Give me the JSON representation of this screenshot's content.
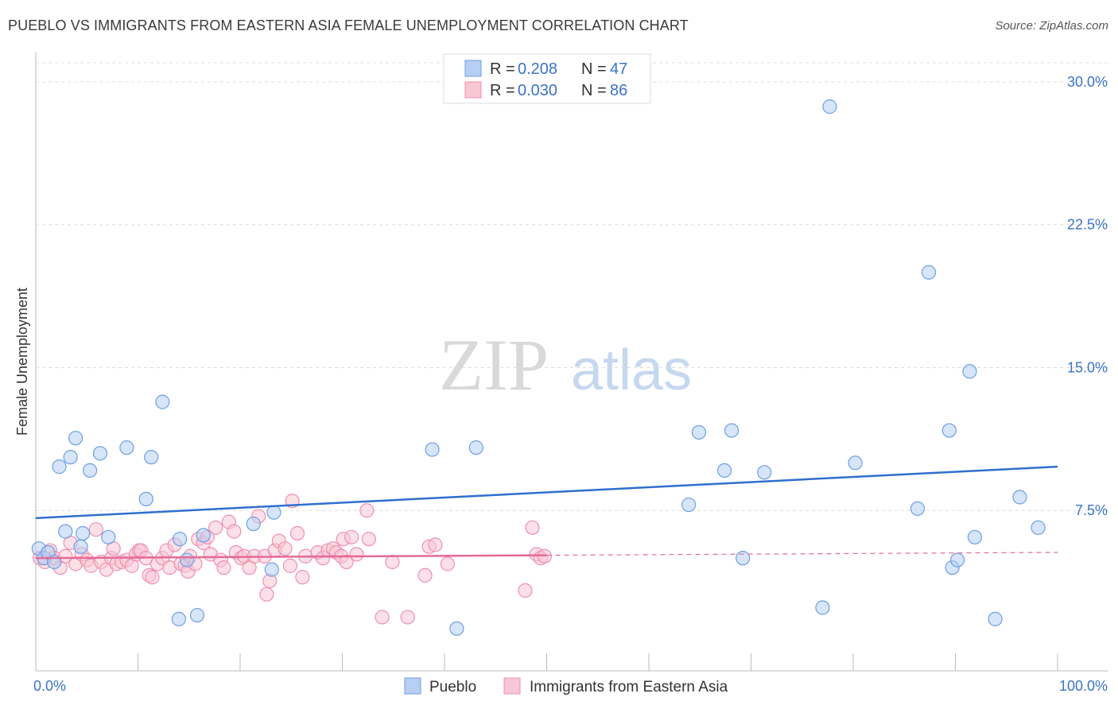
{
  "title": "PUEBLO VS IMMIGRANTS FROM EASTERN ASIA FEMALE UNEMPLOYMENT CORRELATION CHART",
  "source": "Source: ZipAtlas.com",
  "watermark": {
    "zip": "ZIP",
    "atlas": "atlas"
  },
  "legend": {
    "rows": [
      {
        "r_label": "R = ",
        "r_value": "0.208",
        "n_label": "N = ",
        "n_value": "47"
      },
      {
        "r_label": "R = ",
        "r_value": "0.030",
        "n_label": "N = ",
        "n_value": "86"
      }
    ]
  },
  "chart_data": {
    "type": "scatter",
    "ylabel": "Female Unemployment",
    "xlim": [
      0,
      100
    ],
    "ylim": [
      0,
      31
    ],
    "x_tick_labels": [
      {
        "value": 0,
        "label": "0.0%"
      },
      {
        "value": 100,
        "label": "100.0%"
      }
    ],
    "y_ticks": [
      {
        "value": 7.5,
        "label": "7.5%"
      },
      {
        "value": 15.0,
        "label": "15.0%"
      },
      {
        "value": 22.5,
        "label": "22.5%"
      },
      {
        "value": 30.0,
        "label": "30.0%"
      }
    ],
    "grid": true,
    "legend_position": "top-center",
    "series": [
      {
        "name": "Pueblo",
        "color": "#6d9ee6",
        "fill": "#b7cff3",
        "trend": {
          "x": [
            0,
            100
          ],
          "y": [
            7.1,
            9.8
          ],
          "color": "#2f6fcd",
          "dashed_from": null
        },
        "points": [
          [
            0.3,
            5.5
          ],
          [
            0.8,
            5.0
          ],
          [
            1.2,
            5.3
          ],
          [
            1.8,
            4.8
          ],
          [
            2.3,
            9.8
          ],
          [
            2.9,
            6.4
          ],
          [
            3.4,
            10.3
          ],
          [
            3.9,
            11.3
          ],
          [
            4.4,
            5.6
          ],
          [
            4.6,
            6.3
          ],
          [
            5.3,
            9.6
          ],
          [
            6.3,
            10.5
          ],
          [
            7.1,
            6.1
          ],
          [
            8.9,
            10.8
          ],
          [
            10.8,
            8.1
          ],
          [
            11.3,
            10.3
          ],
          [
            12.4,
            13.2
          ],
          [
            14.0,
            1.8
          ],
          [
            14.1,
            6.0
          ],
          [
            14.8,
            4.9
          ],
          [
            15.8,
            2.0
          ],
          [
            16.4,
            6.2
          ],
          [
            21.3,
            6.8
          ],
          [
            23.1,
            4.4
          ],
          [
            23.3,
            7.4
          ],
          [
            38.8,
            10.7
          ],
          [
            41.2,
            1.3
          ],
          [
            43.1,
            10.8
          ],
          [
            63.9,
            7.8
          ],
          [
            64.9,
            11.6
          ],
          [
            67.4,
            9.6
          ],
          [
            68.1,
            11.7
          ],
          [
            69.2,
            5.0
          ],
          [
            71.3,
            9.5
          ],
          [
            77.0,
            2.4
          ],
          [
            77.7,
            28.7
          ],
          [
            80.2,
            10.0
          ],
          [
            86.3,
            7.6
          ],
          [
            87.4,
            20.0
          ],
          [
            89.4,
            11.7
          ],
          [
            89.7,
            4.5
          ],
          [
            90.2,
            4.9
          ],
          [
            91.4,
            14.8
          ],
          [
            91.9,
            6.1
          ],
          [
            93.9,
            1.8
          ],
          [
            96.3,
            8.2
          ],
          [
            98.1,
            6.6
          ]
        ]
      },
      {
        "name": "Immigrants from Eastern Asia",
        "color": "#ee90ad",
        "fill": "#f8c6d5",
        "trend": {
          "x": [
            0,
            100
          ],
          "y": [
            5.0,
            5.3
          ],
          "color": "#e46a94",
          "dashed_from": 50
        },
        "points": [
          [
            0.4,
            5.0
          ],
          [
            0.9,
            4.8
          ],
          [
            1.4,
            5.4
          ],
          [
            1.8,
            5.0
          ],
          [
            2.4,
            4.5
          ],
          [
            2.9,
            5.1
          ],
          [
            3.4,
            5.8
          ],
          [
            3.9,
            4.7
          ],
          [
            4.5,
            5.2
          ],
          [
            5.0,
            4.9
          ],
          [
            5.4,
            4.6
          ],
          [
            5.9,
            6.5
          ],
          [
            6.4,
            4.8
          ],
          [
            6.9,
            4.4
          ],
          [
            7.4,
            5.0
          ],
          [
            7.6,
            5.5
          ],
          [
            7.9,
            4.7
          ],
          [
            8.4,
            4.8
          ],
          [
            8.9,
            4.9
          ],
          [
            9.4,
            4.6
          ],
          [
            9.8,
            5.2
          ],
          [
            10.1,
            5.4
          ],
          [
            10.3,
            5.4
          ],
          [
            10.8,
            5.0
          ],
          [
            11.1,
            4.1
          ],
          [
            11.4,
            4.0
          ],
          [
            11.9,
            4.7
          ],
          [
            12.4,
            5.0
          ],
          [
            12.8,
            5.4
          ],
          [
            13.1,
            4.5
          ],
          [
            13.6,
            5.7
          ],
          [
            14.2,
            4.7
          ],
          [
            14.6,
            4.6
          ],
          [
            14.9,
            4.3
          ],
          [
            15.1,
            5.1
          ],
          [
            15.6,
            4.7
          ],
          [
            15.9,
            6.0
          ],
          [
            16.4,
            5.8
          ],
          [
            16.8,
            6.1
          ],
          [
            17.1,
            5.2
          ],
          [
            17.6,
            6.6
          ],
          [
            18.1,
            4.9
          ],
          [
            18.4,
            4.5
          ],
          [
            18.9,
            6.9
          ],
          [
            19.4,
            6.4
          ],
          [
            19.6,
            5.3
          ],
          [
            20.1,
            5.0
          ],
          [
            20.4,
            5.1
          ],
          [
            20.9,
            4.5
          ],
          [
            21.4,
            5.1
          ],
          [
            21.8,
            7.2
          ],
          [
            22.4,
            5.1
          ],
          [
            22.6,
            3.1
          ],
          [
            22.9,
            3.8
          ],
          [
            23.4,
            5.4
          ],
          [
            23.8,
            5.9
          ],
          [
            24.4,
            5.5
          ],
          [
            24.9,
            4.6
          ],
          [
            25.1,
            8.0
          ],
          [
            25.6,
            6.3
          ],
          [
            26.1,
            4.0
          ],
          [
            26.4,
            5.1
          ],
          [
            27.6,
            5.3
          ],
          [
            28.1,
            5.0
          ],
          [
            28.6,
            5.4
          ],
          [
            29.1,
            5.5
          ],
          [
            29.4,
            5.3
          ],
          [
            29.9,
            5.1
          ],
          [
            30.1,
            6.0
          ],
          [
            30.4,
            4.8
          ],
          [
            30.9,
            6.1
          ],
          [
            31.4,
            5.2
          ],
          [
            32.4,
            7.5
          ],
          [
            32.6,
            6.0
          ],
          [
            33.9,
            1.9
          ],
          [
            34.9,
            4.8
          ],
          [
            36.4,
            1.9
          ],
          [
            38.1,
            4.1
          ],
          [
            38.5,
            5.6
          ],
          [
            39.1,
            5.7
          ],
          [
            40.3,
            4.7
          ],
          [
            47.9,
            3.3
          ],
          [
            48.6,
            6.6
          ],
          [
            49.0,
            5.2
          ],
          [
            49.4,
            5.0
          ],
          [
            49.8,
            5.1
          ]
        ]
      }
    ]
  }
}
